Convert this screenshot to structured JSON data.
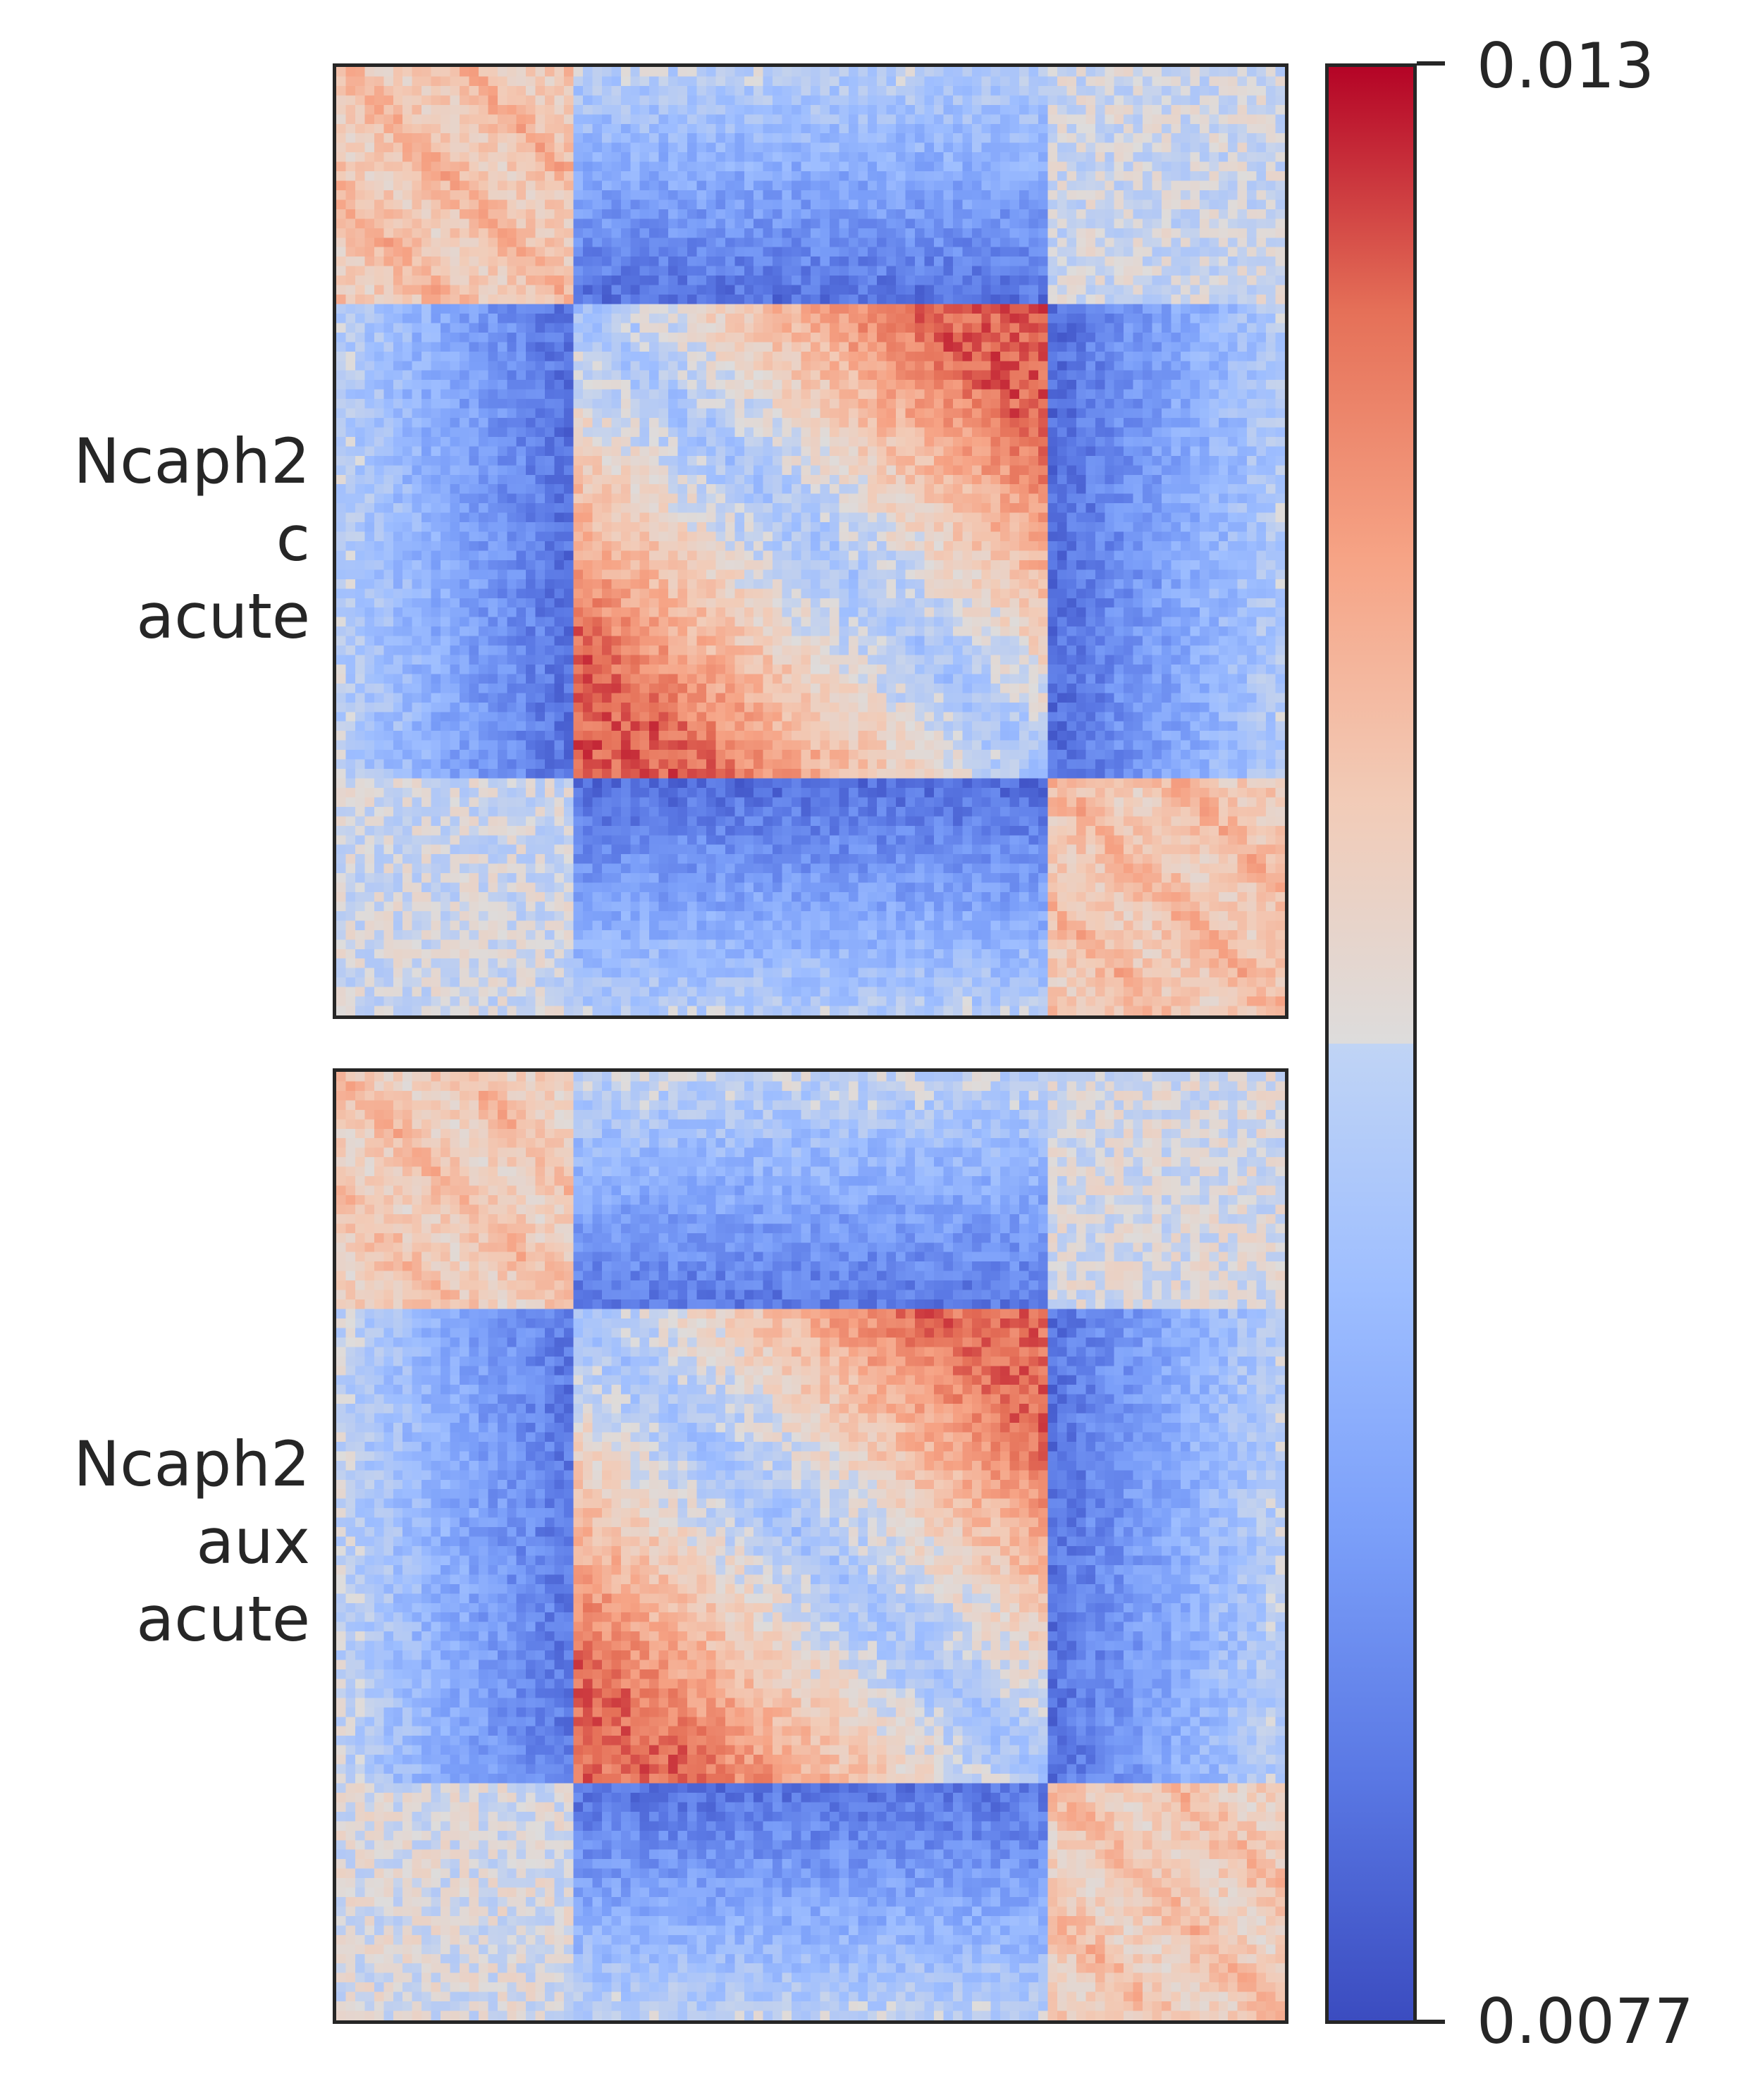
{
  "chart_data": {
    "type": "heatmap",
    "colormap": "coolwarm",
    "colorbar": {
      "min": 0.0077,
      "max": 0.013,
      "min_label": "0.0077",
      "max_label": "0.013",
      "orientation": "vertical",
      "placement": "right"
    },
    "panels": [
      {
        "id": "top",
        "row_label": [
          "Ncaph2",
          "c",
          "acute"
        ],
        "structure": {
          "bins": 100,
          "domain_edges_fraction": [
            0.25,
            0.75
          ],
          "corner_block_value": 0.0115,
          "central_offdiagonal_peak_value": 0.0124,
          "insulation_stripe_value": 0.0082,
          "background_value": 0.0103
        }
      },
      {
        "id": "bottom",
        "row_label": [
          "Ncaph2",
          "aux",
          "acute"
        ],
        "structure": {
          "bins": 100,
          "domain_edges_fraction": [
            0.25,
            0.75
          ],
          "corner_block_value": 0.0114,
          "central_offdiagonal_peak_value": 0.0123,
          "insulation_stripe_value": 0.0083,
          "background_value": 0.0104
        }
      }
    ]
  }
}
